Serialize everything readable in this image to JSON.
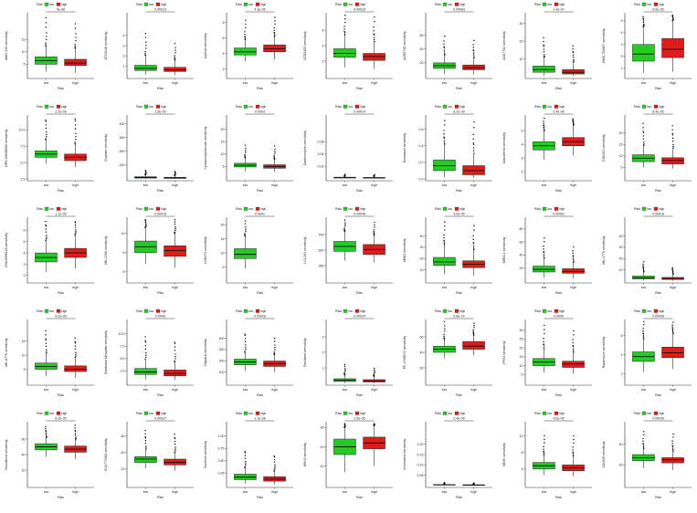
{
  "colors": {
    "low": "#22cc22",
    "high": "#dd1c1c",
    "axis": "#000000",
    "outlier": "#000000"
  },
  "legend": {
    "title": "Risk",
    "items": [
      "low",
      "high"
    ]
  },
  "x_axis_title": "Risk",
  "groups": [
    "low",
    "high"
  ],
  "chart_data": [
    {
      "type": "box",
      "ylabel": "AMG-319 sensitivity",
      "pvalue": "4e-06",
      "ylim": [
        0,
        25
      ],
      "yticks": [
        "5",
        "10",
        "15"
      ],
      "low": {
        "q1": 5.0,
        "med": 6.5,
        "q3": 8.0,
        "lw": 2.0,
        "uw": 12.5
      },
      "high": {
        "q1": 4.5,
        "med": 5.5,
        "q3": 7.0,
        "lw": 1.5,
        "uw": 11.5
      }
    },
    {
      "type": "box",
      "ylabel": "AT13148 sensitivity",
      "pvalue": "0.00013",
      "ylim": [
        0,
        6
      ],
      "yticks": [
        "1",
        "2",
        "3",
        "4"
      ],
      "low": {
        "q1": 0.6,
        "med": 0.8,
        "q3": 1.1,
        "lw": 0.2,
        "uw": 2.0
      },
      "high": {
        "q1": 0.5,
        "med": 0.65,
        "q3": 0.9,
        "lw": 0.15,
        "uw": 1.6
      }
    },
    {
      "type": "box",
      "ylabel": "Axitinib sensitivity",
      "pvalue": "4.3e-05",
      "ylim": [
        1,
        9
      ],
      "yticks": [
        "2",
        "4",
        "6",
        "8"
      ],
      "low": {
        "q1": 3.8,
        "med": 4.2,
        "q3": 4.7,
        "lw": 3.0,
        "uw": 5.8
      },
      "high": {
        "q1": 4.2,
        "med": 4.6,
        "q3": 5.1,
        "lw": 3.2,
        "uw": 6.2
      }
    },
    {
      "type": "box",
      "ylabel": "AZD5153 sensitivity",
      "pvalue": "0.00015",
      "ylim": [
        0,
        8
      ],
      "yticks": [
        "2",
        "4",
        "6"
      ],
      "low": {
        "q1": 2.5,
        "med": 3.0,
        "q3": 3.6,
        "lw": 1.2,
        "uw": 5.2
      },
      "high": {
        "q1": 2.1,
        "med": 2.6,
        "q3": 3.0,
        "lw": 1.0,
        "uw": 4.5
      }
    },
    {
      "type": "box",
      "ylabel": "AZD5738 sensitivity",
      "pvalue": "0.00083",
      "ylim": [
        0,
        90
      ],
      "yticks": [
        "20",
        "40",
        "60"
      ],
      "low": {
        "q1": 12,
        "med": 16,
        "q3": 20,
        "lw": 4,
        "uw": 32
      },
      "high": {
        "q1": 10,
        "med": 13,
        "q3": 17,
        "lw": 3,
        "uw": 27
      }
    },
    {
      "type": "box",
      "ylabel": "AZD7762 sensitivity",
      "pvalue": "1.4e-07",
      "ylim": [
        0,
        35
      ],
      "yticks": [
        "10",
        "20",
        "30"
      ],
      "low": {
        "q1": 2.5,
        "med": 4.0,
        "q3": 6.0,
        "lw": 0.5,
        "uw": 11
      },
      "high": {
        "q1": 1.5,
        "med": 2.5,
        "q3": 4.0,
        "lw": 0.3,
        "uw": 8
      }
    },
    {
      "type": "box",
      "ylabel": "BMS-754807 sensitivity",
      "pvalue": "5.6e-05",
      "ylim": [
        0.3,
        5.5
      ],
      "yticks": [
        "1",
        "2",
        "3",
        "4",
        "5"
      ],
      "low": {
        "q1": 1.6,
        "med": 2.2,
        "q3": 3.0,
        "lw": 0.6,
        "uw": 4.5
      },
      "high": {
        "q1": 1.9,
        "med": 2.6,
        "q3": 3.5,
        "lw": 0.7,
        "uw": 5.0
      }
    },
    {
      "type": "box",
      "ylabel": "BPD-00008900 sensitivity",
      "pvalue": "2.2e-09",
      "ylim": [
        2.5,
        12
      ],
      "yticks": [
        "2.5",
        "5.0",
        "7.5",
        "10.0"
      ],
      "low": {
        "q1": 5.8,
        "med": 6.3,
        "q3": 6.8,
        "lw": 4.8,
        "uw": 8.5
      },
      "high": {
        "q1": 5.3,
        "med": 5.8,
        "q3": 6.3,
        "lw": 4.3,
        "uw": 7.8
      }
    },
    {
      "type": "box",
      "ylabel": "Cisplatin sensitivity",
      "pvalue": "1.5e-05",
      "ylim": [
        0,
        450
      ],
      "yticks": [
        "100",
        "200",
        "300",
        "400"
      ],
      "low": {
        "q1": 6,
        "med": 10,
        "q3": 16,
        "lw": 2,
        "uw": 30
      },
      "high": {
        "q1": 4,
        "med": 7,
        "q3": 12,
        "lw": 1,
        "uw": 24
      }
    },
    {
      "type": "box",
      "ylabel": "Cyclophosphamide sensitivity",
      "pvalue": "0.0003",
      "ylim": [
        0,
        25
      ],
      "yticks": [
        "5",
        "10",
        "15",
        "20"
      ],
      "low": {
        "q1": 4.8,
        "med": 5.5,
        "q3": 6.3,
        "lw": 3.0,
        "uw": 8.5
      },
      "high": {
        "q1": 4.3,
        "med": 5.0,
        "q3": 5.7,
        "lw": 2.8,
        "uw": 7.8
      }
    },
    {
      "type": "box",
      "ylabel": "Dactinomycin sensitivity",
      "pvalue": "0.00014",
      "ylim": [
        0,
        0.1
      ],
      "yticks": [
        "0.02",
        "0.04",
        "0.06"
      ],
      "low": {
        "q1": 0.0015,
        "med": 0.002,
        "q3": 0.0028,
        "lw": 0.0008,
        "uw": 0.004
      },
      "high": {
        "q1": 0.0012,
        "med": 0.0017,
        "q3": 0.0023,
        "lw": 0.0006,
        "uw": 0.0035
      }
    },
    {
      "type": "box",
      "ylabel": "Docetaxel sensitivity",
      "pvalue": "8.1e-09",
      "ylim": [
        0,
        0.75
      ],
      "yticks": [
        "0.0",
        "0.2",
        "0.4",
        "0.6"
      ],
      "low": {
        "q1": 0.1,
        "med": 0.16,
        "q3": 0.23,
        "lw": 0.02,
        "uw": 0.42
      },
      "high": {
        "q1": 0.05,
        "med": 0.1,
        "q3": 0.16,
        "lw": 0.01,
        "uw": 0.3
      }
    },
    {
      "type": "box",
      "ylabel": "Dabrafenib sensitivity",
      "pvalue": "2.4e-06",
      "ylim": [
        1.5,
        6
      ],
      "yticks": [
        "2",
        "3",
        "4",
        "5"
      ],
      "low": {
        "q1": 3.6,
        "med": 3.9,
        "q3": 4.2,
        "lw": 2.9,
        "uw": 5.0
      },
      "high": {
        "q1": 3.9,
        "med": 4.2,
        "q3": 4.5,
        "lw": 3.2,
        "uw": 5.4
      }
    },
    {
      "type": "box",
      "ylabel": "GSK343 sensitivity",
      "pvalue": "8.4e-05",
      "ylim": [
        0,
        27
      ],
      "yticks": [
        "5",
        "10",
        "15",
        "20"
      ],
      "low": {
        "q1": 7.5,
        "med": 9.0,
        "q3": 10.5,
        "lw": 5.0,
        "uw": 14.5
      },
      "high": {
        "q1": 6.5,
        "med": 8.0,
        "q3": 9.2,
        "lw": 4.5,
        "uw": 13
      }
    },
    {
      "type": "box",
      "ylabel": "GSK269962A sensitivity",
      "pvalue": "1.1e-05",
      "ylim": [
        1.5,
        7
      ],
      "yticks": [
        "2",
        "3",
        "4",
        "5",
        "6"
      ],
      "low": {
        "q1": 3.2,
        "med": 3.6,
        "q3": 4.0,
        "lw": 2.3,
        "uw": 5.1
      },
      "high": {
        "q1": 3.6,
        "med": 4.0,
        "q3": 4.4,
        "lw": 2.6,
        "uw": 5.6
      }
    },
    {
      "type": "box",
      "ylabel": "MK-2206 sensitivity",
      "pvalue": "0.00016",
      "ylim": [
        5,
        11.5
      ],
      "yticks": [
        "6",
        "8",
        "10"
      ],
      "low": {
        "q1": 8.0,
        "med": 8.6,
        "q3": 9.2,
        "lw": 6.8,
        "uw": 10.6
      },
      "high": {
        "q1": 7.6,
        "med": 8.2,
        "q3": 8.7,
        "lw": 6.4,
        "uw": 10.0
      }
    },
    {
      "type": "box",
      "ylabel": "LGK974 sensitivity",
      "pvalue": "0.0041",
      "ylim": [
        0,
        22
      ],
      "yticks": [
        "5",
        "10",
        "15",
        "20"
      ],
      "low": {
        "q1": 8.0,
        "med": 9.5,
        "q3": 11.5,
        "lw": 4.5,
        "uw": 16
      }
    },
    {
      "type": "box",
      "ylabel": "LCL161 sensitivity",
      "pvalue": "0.00046",
      "ylim": [
        0,
        1000
      ],
      "yticks": [
        "250",
        "500",
        "750"
      ],
      "low": {
        "q1": 480,
        "med": 560,
        "q3": 640,
        "lw": 330,
        "uw": 800
      },
      "high": {
        "q1": 430,
        "med": 510,
        "q3": 590,
        "lw": 300,
        "uw": 740
      }
    },
    {
      "type": "box",
      "ylabel": "MIM1 sensitivity",
      "pvalue": "5.6e-05",
      "ylim": [
        0,
        55
      ],
      "yticks": [
        "10",
        "20",
        "30",
        "40"
      ],
      "low": {
        "q1": 14,
        "med": 17,
        "q3": 21,
        "lw": 6,
        "uw": 32
      },
      "high": {
        "q1": 12,
        "med": 15,
        "q3": 18,
        "lw": 5,
        "uw": 28
      }
    },
    {
      "type": "box",
      "ylabel": "MIRA-1 sensitivity",
      "pvalue": "0.00051",
      "ylim": [
        0,
        95
      ],
      "yticks": [
        "20",
        "40",
        "60",
        "80"
      ],
      "low": {
        "q1": 14,
        "med": 18,
        "q3": 23,
        "lw": 5,
        "uw": 35
      },
      "high": {
        "q1": 12,
        "med": 15,
        "q3": 19,
        "lw": 4,
        "uw": 29
      }
    },
    {
      "type": "box",
      "ylabel": "MK-1775 sensitivity",
      "pvalue": "0.00018",
      "ylim": [
        0,
        55
      ],
      "yticks": [
        "10",
        "20",
        "30",
        "40"
      ],
      "low": {
        "q1": 2,
        "med": 3,
        "q3": 4.5,
        "lw": 0.5,
        "uw": 8
      },
      "high": {
        "q1": 1.5,
        "med": 2.3,
        "q3": 3.3,
        "lw": 0.4,
        "uw": 6
      }
    },
    {
      "type": "box",
      "ylabel": "MK-8776 sensitivity",
      "pvalue": "8.2e-06",
      "ylim": [
        0,
        22
      ],
      "yticks": [
        "5",
        "10",
        "15"
      ],
      "low": {
        "q1": 5.0,
        "med": 6.0,
        "q3": 7.2,
        "lw": 2.5,
        "uw": 10.5
      },
      "high": {
        "q1": 4.2,
        "med": 5.0,
        "q3": 6.2,
        "lw": 2.0,
        "uw": 9.2
      }
    },
    {
      "type": "box",
      "ylabel": "Obatoclax Mesylate sensitivity",
      "pvalue": "0.0008",
      "ylim": [
        0,
        12.5
      ],
      "yticks": [
        "2.5",
        "5.0",
        "7.5",
        "10.0"
      ],
      "low": {
        "q1": 1.8,
        "med": 2.3,
        "q3": 3.0,
        "lw": 0.8,
        "uw": 4.8
      },
      "high": {
        "q1": 1.5,
        "med": 2.0,
        "q3": 2.7,
        "lw": 0.7,
        "uw": 4.3
      }
    },
    {
      "type": "box",
      "ylabel": "Olaparib sensitivity",
      "pvalue": "0.00028",
      "ylim": [
        0,
        550
      ],
      "yticks": [
        "100",
        "200",
        "300",
        "400"
      ],
      "low": {
        "q1": 165,
        "med": 190,
        "q3": 215,
        "lw": 110,
        "uw": 270
      },
      "high": {
        "q1": 150,
        "med": 175,
        "q3": 198,
        "lw": 100,
        "uw": 255
      }
    },
    {
      "type": "box",
      "ylabel": "Paclitaxel sensitivity",
      "pvalue": "0.00024",
      "ylim": [
        0,
        4
      ],
      "yticks": [
        "1",
        "2",
        "3"
      ],
      "low": {
        "q1": 0.12,
        "med": 0.2,
        "q3": 0.3,
        "lw": 0.02,
        "uw": 0.55
      },
      "high": {
        "q1": 0.09,
        "med": 0.15,
        "q3": 0.24,
        "lw": 0.01,
        "uw": 0.45
      }
    },
    {
      "type": "box",
      "ylabel": "PF-4708671 sensitivity",
      "pvalue": "6.8e-14",
      "ylim": [
        20,
        60
      ],
      "yticks": [
        "30",
        "40",
        "50"
      ],
      "low": {
        "q1": 40,
        "med": 42,
        "q3": 44,
        "lw": 36,
        "uw": 48
      },
      "high": {
        "q1": 42,
        "med": 44,
        "q3": 47,
        "lw": 38,
        "uw": 51
      }
    },
    {
      "type": "box",
      "ylabel": "PF03 sensitivity",
      "pvalue": "0.0006",
      "ylim": [
        0,
        35
      ],
      "yticks": [
        "5",
        "10",
        "15",
        "20",
        "25",
        "30"
      ],
      "low": {
        "q1": 10,
        "med": 12,
        "q3": 14,
        "lw": 6,
        "uw": 19
      },
      "high": {
        "q1": 9,
        "med": 11,
        "q3": 12.5,
        "lw": 5.5,
        "uw": 17.5
      }
    },
    {
      "type": "box",
      "ylabel": "Rapamycin sensitivity",
      "pvalue": "0.00008",
      "ylim": [
        1,
        7.5
      ],
      "yticks": [
        "2",
        "4",
        "6"
      ],
      "low": {
        "q1": 3.3,
        "med": 3.8,
        "q3": 4.3,
        "lw": 2.2,
        "uw": 5.6
      },
      "high": {
        "q1": 3.7,
        "med": 4.2,
        "q3": 4.8,
        "lw": 2.5,
        "uw": 6.2
      }
    },
    {
      "type": "box",
      "ylabel": "Ruxolitinib sensitivity",
      "pvalue": "6.3e-05",
      "ylim": [
        0,
        80
      ],
      "yticks": [
        "20",
        "40",
        "60"
      ],
      "low": {
        "q1": 46,
        "med": 50,
        "q3": 54,
        "lw": 37,
        "uw": 62
      },
      "high": {
        "q1": 43,
        "med": 47,
        "q3": 51,
        "lw": 34,
        "uw": 59
      }
    },
    {
      "type": "box",
      "ylabel": "SCH772984 sensitivity",
      "pvalue": "0.00037",
      "ylim": [
        0,
        75
      ],
      "yticks": [
        "20",
        "40",
        "60"
      ],
      "low": {
        "q1": 28,
        "med": 32,
        "q3": 35,
        "lw": 21,
        "uw": 43
      },
      "high": {
        "q1": 25,
        "med": 28,
        "q3": 32,
        "lw": 18,
        "uw": 40
      }
    },
    {
      "type": "box",
      "ylabel": "Sunitinib sensitivity",
      "pvalue": "1.1e-08",
      "ylim": [
        0,
        1.25
      ],
      "yticks": [
        "0.25",
        "0.50",
        "0.75",
        "1.00"
      ],
      "low": {
        "q1": 0.12,
        "med": 0.17,
        "q3": 0.23,
        "lw": 0.04,
        "uw": 0.36
      },
      "high": {
        "q1": 0.09,
        "med": 0.13,
        "q3": 0.18,
        "lw": 0.02,
        "uw": 0.29
      }
    },
    {
      "type": "box",
      "ylabel": "WIKI4 sensitivity",
      "pvalue": "1.5e-05",
      "ylim": [
        0,
        32
      ],
      "yticks": [
        "10",
        "20",
        "30"
      ],
      "low": {
        "q1": 16,
        "med": 20,
        "q3": 24,
        "lw": 7,
        "uw": 30
      },
      "high": {
        "q1": 19,
        "med": 22,
        "q3": 25,
        "lw": 10,
        "uw": 31
      }
    },
    {
      "type": "box",
      "ylabel": "Vinorelbine sensitivity",
      "pvalue": "2.4e-06",
      "ylim": [
        0,
        0.3
      ],
      "yticks": [
        "0.05",
        "0.10",
        "0.15",
        "0.20"
      ],
      "low": {
        "q1": 0.003,
        "med": 0.004,
        "q3": 0.005,
        "lw": 0.001,
        "uw": 0.008
      },
      "high": {
        "q1": 0.002,
        "med": 0.003,
        "q3": 0.004,
        "lw": 0.001,
        "uw": 0.006
      }
    },
    {
      "type": "box",
      "ylabel": "WEHI sensitivity",
      "pvalue": "4.6e-05",
      "ylim": [
        0,
        15
      ],
      "yticks": [
        "4",
        "8",
        "12"
      ],
      "low": {
        "q1": 4.0,
        "med": 4.8,
        "q3": 5.6,
        "lw": 2.5,
        "uw": 7.5
      },
      "high": {
        "q1": 3.6,
        "med": 4.3,
        "q3": 5.0,
        "lw": 2.2,
        "uw": 7.0
      }
    },
    {
      "type": "box",
      "ylabel": "XAV939 sensitivity",
      "pvalue": "0.00035",
      "ylim": [
        0,
        60
      ],
      "yticks": [
        "20",
        "40"
      ],
      "low": {
        "q1": 24,
        "med": 27,
        "q3": 30,
        "lw": 17,
        "uw": 36
      },
      "high": {
        "q1": 22,
        "med": 25,
        "q3": 27,
        "lw": 15,
        "uw": 33
      }
    }
  ]
}
